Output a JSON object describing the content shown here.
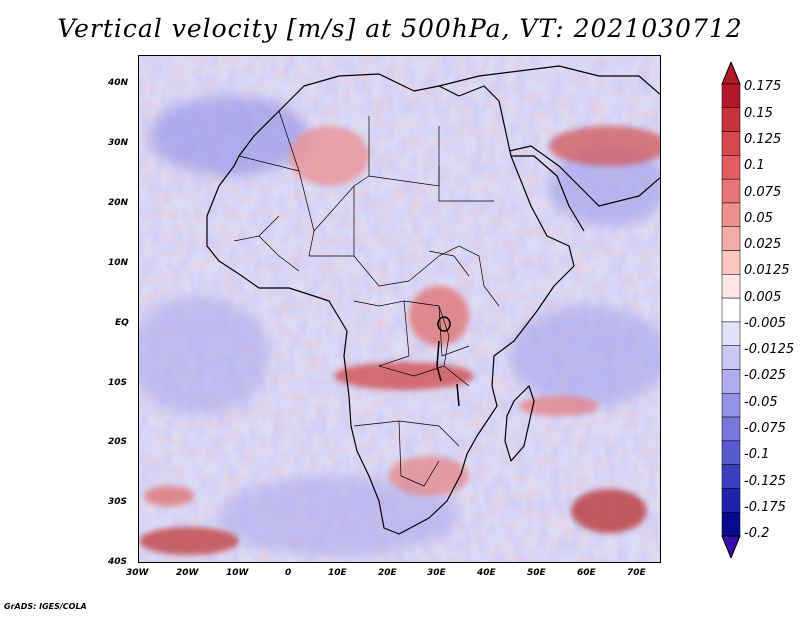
{
  "title": "Vertical velocity [m/s] at 500hPa, VT: 2021030712",
  "footer": "GrADS: IGES/COLA",
  "map": {
    "lat_labels": [
      "40N",
      "30N",
      "20N",
      "10N",
      "EQ",
      "10S",
      "20S",
      "30S",
      "40S"
    ],
    "lon_labels": [
      "30W",
      "20W",
      "10W",
      "0",
      "10E",
      "20E",
      "30E",
      "40E",
      "50E",
      "60E",
      "70E"
    ]
  },
  "colorbar": {
    "labels": [
      "0.175",
      "0.15",
      "0.125",
      "0.1",
      "0.075",
      "0.05",
      "0.025",
      "0.0125",
      "0.005",
      "-0.005",
      "-0.0125",
      "-0.025",
      "-0.05",
      "-0.075",
      "-0.1",
      "-0.125",
      "-0.175",
      "-0.2"
    ],
    "colors": [
      "#b2182b",
      "#c8333a",
      "#d6484e",
      "#e05e5f",
      "#e87575",
      "#ef8f8c",
      "#f4aaa6",
      "#f9c6c2",
      "#fde6e4",
      "#ffffff",
      "#e2e2fa",
      "#c8c8f4",
      "#aeaeee",
      "#9494e6",
      "#7878dc",
      "#5a5ad0",
      "#3c3cbe",
      "#2020a8",
      "#0a0a90"
    ],
    "top_arrow_color": "#b2182b",
    "bottom_arrow_color": "#3a0ca8"
  }
}
